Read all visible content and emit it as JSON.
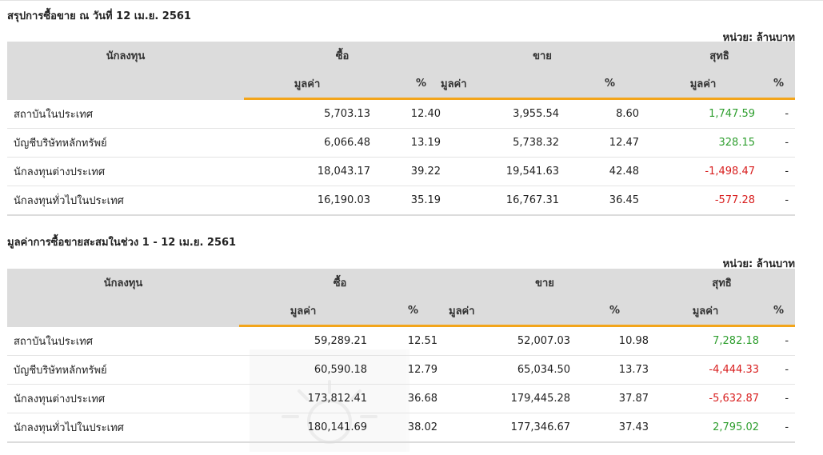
{
  "section1": {
    "title": "สรุปการซื้อขาย ณ วันที่ 12 เม.ย. 2561",
    "unit": "หน่วย: ล้านบาท",
    "headers": {
      "investor": "นักลงทุน",
      "buy": "ซื้อ",
      "sell": "ขาย",
      "net": "สุทธิ",
      "value": "มูลค่า",
      "percent": "%"
    },
    "rows": [
      {
        "name": "สถาบันในประเทศ",
        "buy_value": "5,703.13",
        "buy_pct": "12.40",
        "sell_value": "3,955.54",
        "sell_pct": "8.60",
        "net_value": "1,747.59",
        "net_pct": "-",
        "net_sign": "pos"
      },
      {
        "name": "บัญชีบริษัทหลักทรัพย์",
        "buy_value": "6,066.48",
        "buy_pct": "13.19",
        "sell_value": "5,738.32",
        "sell_pct": "12.47",
        "net_value": "328.15",
        "net_pct": "-",
        "net_sign": "pos"
      },
      {
        "name": "นักลงทุนต่างประเทศ",
        "buy_value": "18,043.17",
        "buy_pct": "39.22",
        "sell_value": "19,541.63",
        "sell_pct": "42.48",
        "net_value": "-1,498.47",
        "net_pct": "-",
        "net_sign": "neg"
      },
      {
        "name": "นักลงทุนทั่วไปในประเทศ",
        "buy_value": "16,190.03",
        "buy_pct": "35.19",
        "sell_value": "16,767.31",
        "sell_pct": "36.45",
        "net_value": "-577.28",
        "net_pct": "-",
        "net_sign": "neg"
      }
    ]
  },
  "section2": {
    "title": "มูลค่าการซื้อขายสะสมในช่วง 1 - 12 เม.ย. 2561",
    "unit": "หน่วย: ล้านบาท",
    "headers": {
      "investor": "นักลงทุน",
      "buy": "ซื้อ",
      "sell": "ขาย",
      "net": "สุทธิ",
      "value": "มูลค่า",
      "percent": "%"
    },
    "rows": [
      {
        "name": "สถาบันในประเทศ",
        "buy_value": "59,289.21",
        "buy_pct": "12.51",
        "sell_value": "52,007.03",
        "sell_pct": "10.98",
        "net_value": "7,282.18",
        "net_pct": "-",
        "net_sign": "pos"
      },
      {
        "name": "บัญชีบริษัทหลักทรัพย์",
        "buy_value": "60,590.18",
        "buy_pct": "12.79",
        "sell_value": "65,034.50",
        "sell_pct": "13.73",
        "net_value": "-4,444.33",
        "net_pct": "-",
        "net_sign": "neg"
      },
      {
        "name": "นักลงทุนต่างประเทศ",
        "buy_value": "173,812.41",
        "buy_pct": "36.68",
        "sell_value": "179,445.28",
        "sell_pct": "37.87",
        "net_value": "-5,632.87",
        "net_pct": "-",
        "net_sign": "neg"
      },
      {
        "name": "นักลงทุนทั่วไปในประเทศ",
        "buy_value": "180,141.69",
        "buy_pct": "38.02",
        "sell_value": "177,346.67",
        "sell_pct": "37.43",
        "net_value": "2,795.02",
        "net_pct": "-",
        "net_sign": "pos"
      }
    ]
  },
  "colors": {
    "accent": "#f3a51a",
    "header_bg": "#dcdcdc",
    "positive": "#2e9e2e",
    "negative": "#d81e1e"
  }
}
